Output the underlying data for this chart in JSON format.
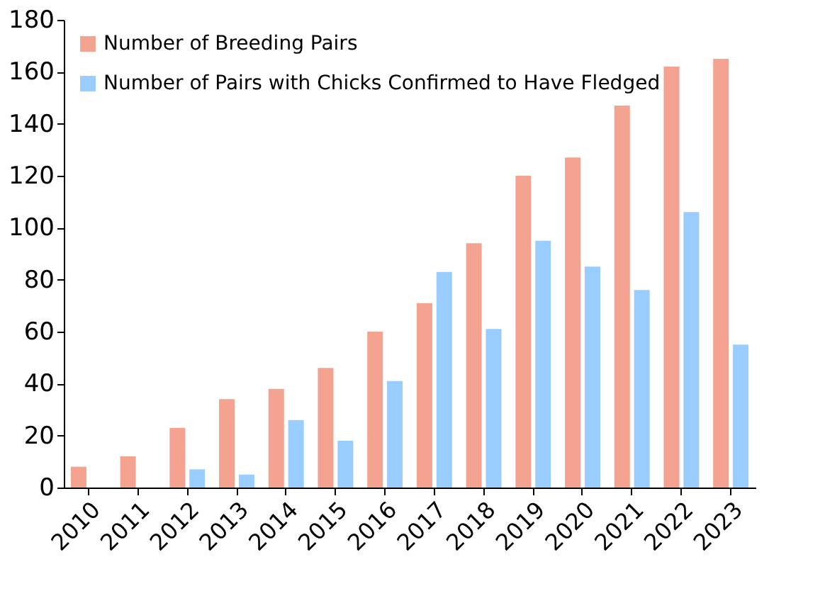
{
  "chart_data": {
    "type": "bar",
    "categories": [
      "2010",
      "2011",
      "2012",
      "2013",
      "2014",
      "2015",
      "2016",
      "2017",
      "2018",
      "2019",
      "2020",
      "2021",
      "2022",
      "2023"
    ],
    "series": [
      {
        "name": "Number of Breeding Pairs",
        "color": "#f4a391",
        "values": [
          8,
          12,
          23,
          34,
          38,
          46,
          60,
          71,
          94,
          120,
          127,
          147,
          162,
          165
        ]
      },
      {
        "name": "Number of Pairs with Chicks Confirmed to Have Fledged",
        "color": "#99ccff",
        "values": [
          0,
          0,
          7,
          5,
          26,
          18,
          41,
          83,
          61,
          95,
          85,
          76,
          106,
          55
        ]
      }
    ],
    "ylim": [
      0,
      180
    ],
    "yticks": [
      0,
      20,
      40,
      60,
      80,
      100,
      120,
      140,
      160,
      180
    ],
    "grid": false,
    "legend": "top left"
  }
}
